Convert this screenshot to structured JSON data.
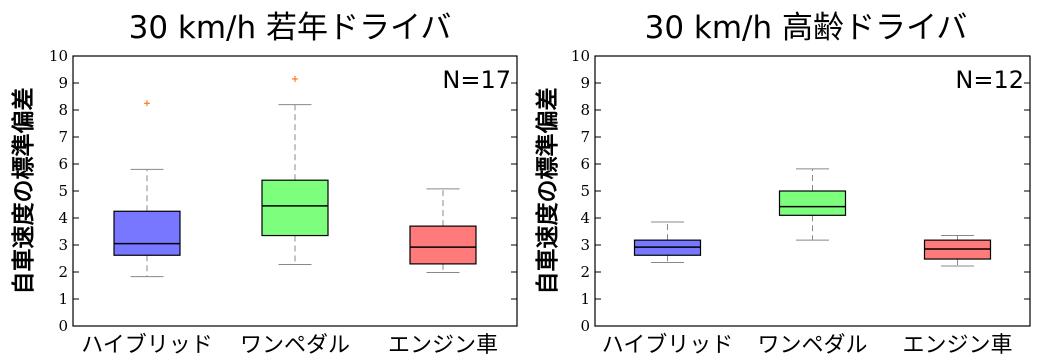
{
  "chart_data": [
    {
      "type": "box",
      "title": "30 km/h 若年ドライバ",
      "ylabel": "自車速度の標準偏差",
      "xlabel": "",
      "ylim": [
        0,
        10
      ],
      "yticks": [
        0,
        1,
        2,
        3,
        4,
        5,
        6,
        7,
        8,
        9,
        10
      ],
      "annotation": "N=17",
      "grid": false,
      "categories": [
        "ハイブリッド",
        "ワンペダル",
        "エンジン車"
      ],
      "series": [
        {
          "color": "#7777ff",
          "whisker_low": 1.83,
          "q1": 2.62,
          "median": 3.05,
          "q3": 4.25,
          "whisker_high": 5.8,
          "outliers": [
            8.25
          ]
        },
        {
          "color": "#7dff7d",
          "whisker_low": 2.28,
          "q1": 3.35,
          "median": 4.45,
          "q3": 5.4,
          "whisker_high": 8.2,
          "outliers": [
            9.15
          ]
        },
        {
          "color": "#ff7b7b",
          "whisker_low": 1.98,
          "q1": 2.3,
          "median": 2.92,
          "q3": 3.7,
          "whisker_high": 5.08,
          "outliers": []
        }
      ]
    },
    {
      "type": "box",
      "title": "30 km/h 高齢ドライバ",
      "ylabel": "自車速度の標準偏差",
      "xlabel": "",
      "ylim": [
        0,
        10
      ],
      "yticks": [
        0,
        1,
        2,
        3,
        4,
        5,
        6,
        7,
        8,
        9,
        10
      ],
      "annotation": "N=12",
      "grid": false,
      "categories": [
        "ハイブリッド",
        "ワンペダル",
        "エンジン車"
      ],
      "series": [
        {
          "color": "#7777ff",
          "whisker_low": 2.35,
          "q1": 2.62,
          "median": 2.92,
          "q3": 3.18,
          "whisker_high": 3.85,
          "outliers": []
        },
        {
          "color": "#7dff7d",
          "whisker_low": 3.18,
          "q1": 4.1,
          "median": 4.42,
          "q3": 5.0,
          "whisker_high": 5.82,
          "outliers": []
        },
        {
          "color": "#ff7b7b",
          "whisker_low": 2.22,
          "q1": 2.48,
          "median": 2.85,
          "q3": 3.18,
          "whisker_high": 3.35,
          "outliers": []
        }
      ]
    }
  ],
  "colors": {
    "outlier": "#ff6600",
    "whisker": "#888888",
    "axis": "#000000"
  }
}
